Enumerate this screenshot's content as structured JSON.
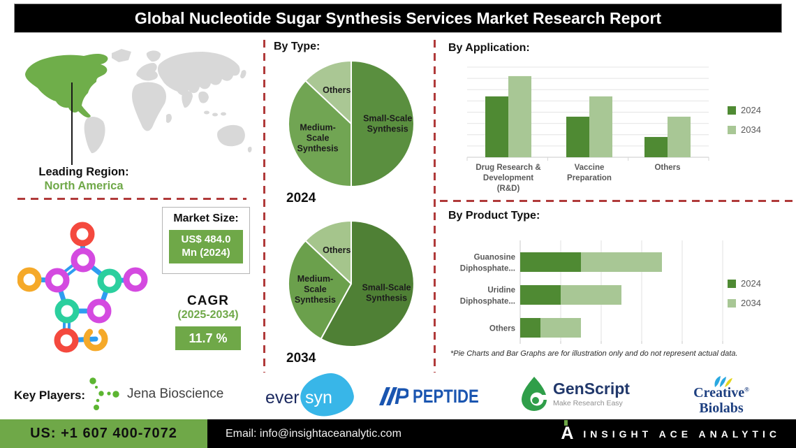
{
  "title": "Global Nucleotide Sugar Synthesis Services Market Research Report",
  "colors": {
    "accent_green": "#6fa848",
    "dark_series": "#4f8a33",
    "light_series": "#a8c795",
    "divider_red": "#b03a3a"
  },
  "map": {
    "leading_region_label": "Leading Region:",
    "leading_region_value": "North America"
  },
  "market_size": {
    "label": "Market Size:",
    "value_line1": "US$ 484.0",
    "value_line2": "Mn (2024)"
  },
  "cagr": {
    "label": "CAGR",
    "period": "(2025-2034)",
    "value": "11.7 %"
  },
  "sections": {
    "by_type": "By Type:",
    "by_application": "By Application:",
    "by_product_type": "By Product Type:"
  },
  "footnote": "*Pie Charts and Bar Graphs are for illustration only and do not represent actual data.",
  "key_players": {
    "label": "Key Players:",
    "jena": "Jena Bioscience",
    "eversyn_part1": "ever",
    "eversyn_part2": "syn",
    "peptide": "PEPTIDE",
    "peptide_icon_letter": "P",
    "genscript": "GenScript",
    "genscript_tagline": "Make Research Easy",
    "creative_line1": "Creative",
    "creative_reg": "®",
    "creative_line2": "Biolabs"
  },
  "footer": {
    "phone": "US: +1 607 400-7072",
    "email": "Email: info@insightaceanalytic.com",
    "brand_letter": "A",
    "brand": "INSIGHT ACE ANALYTIC"
  },
  "chart_data": [
    {
      "id": "by_type_2024",
      "type": "pie",
      "title": "By Type",
      "year": "2024",
      "labels": [
        "Small-Scale Synthesis",
        "Medium-Scale Synthesis",
        "Others"
      ],
      "label_lines": [
        [
          "Small-Scale",
          "Synthesis"
        ],
        [
          "Medium-",
          "Scale",
          "Synthesis"
        ],
        [
          "Others"
        ]
      ],
      "values": [
        50,
        37,
        13
      ],
      "colors": [
        "#5a8f3f",
        "#71a553",
        "#aac794"
      ],
      "note": "illustrative"
    },
    {
      "id": "by_type_2034",
      "type": "pie",
      "title": "By Type",
      "year": "2034",
      "labels": [
        "Small-Scale Synthesis",
        "Medium-Scale Synthesis",
        "Others"
      ],
      "label_lines": [
        [
          "Small-Scale",
          "Synthesis"
        ],
        [
          "Medium-",
          "Scale",
          "Synthesis"
        ],
        [
          "Others"
        ]
      ],
      "values": [
        58,
        29,
        13
      ],
      "colors": [
        "#4f8035",
        "#6ba04c",
        "#a5c58c"
      ],
      "note": "illustrative"
    },
    {
      "id": "by_application",
      "type": "bar",
      "title": "By Application",
      "categories": [
        "Drug Research & Development (R&D)",
        "Vaccine Preparation",
        "Others"
      ],
      "category_lines": [
        [
          "Drug Research &",
          "Development",
          "(R&D)"
        ],
        [
          "Vaccine",
          "Preparation"
        ],
        [
          "Others"
        ]
      ],
      "series": [
        {
          "name": "2024",
          "values": [
            5.4,
            3.6,
            1.8
          ],
          "color": "#4f8a33"
        },
        {
          "name": "2034",
          "values": [
            7.2,
            5.4,
            3.6
          ],
          "color": "#a8c795"
        }
      ],
      "ylim": [
        0,
        8
      ],
      "gridlines": true,
      "legend_position": "right",
      "note": "illustrative"
    },
    {
      "id": "by_product_type",
      "type": "bar",
      "orientation": "horizontal",
      "stacked": true,
      "title": "By Product Type",
      "categories": [
        "Guanosine Diphosphate...",
        "Uridine Diphosphate...",
        "Others"
      ],
      "category_lines": [
        [
          "Guanosine",
          "Diphosphate..."
        ],
        [
          "Uridine",
          "Diphosphate..."
        ],
        [
          "Others"
        ]
      ],
      "series": [
        {
          "name": "2024",
          "values": [
            1.5,
            1.0,
            0.5
          ],
          "color": "#4f8a33"
        },
        {
          "name": "2034",
          "values": [
            2.0,
            1.5,
            1.0
          ],
          "color": "#a8c795"
        }
      ],
      "xlim": [
        0,
        5
      ],
      "gridlines": true,
      "legend_position": "right",
      "note": "illustrative"
    }
  ]
}
